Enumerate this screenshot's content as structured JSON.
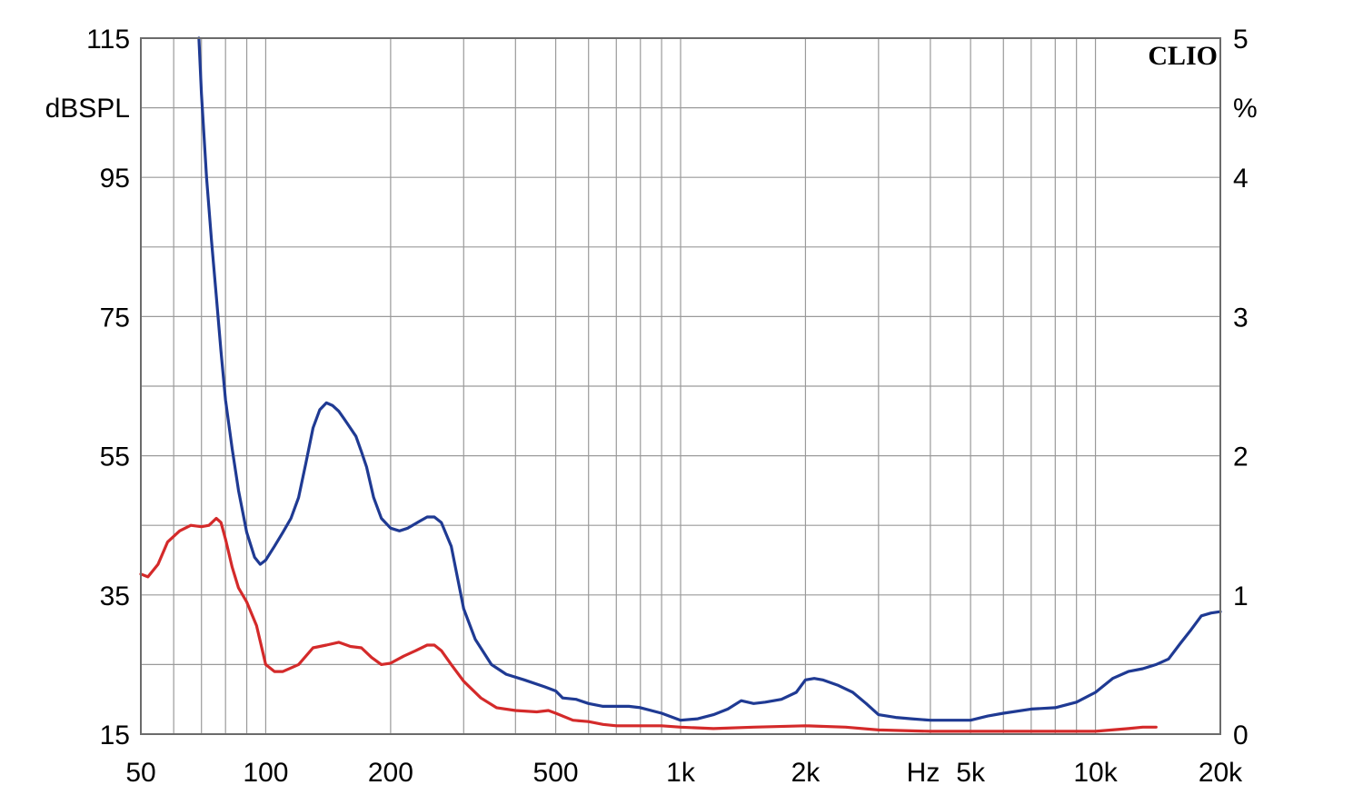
{
  "chart_data": {
    "type": "line",
    "brand_label": "CLIO",
    "x_unit_label": "Hz",
    "y_left_unit": "dBSPL",
    "y_right_unit": "%",
    "x_scale": "log",
    "xlim": [
      50,
      20000
    ],
    "x_ticks": [
      {
        "value": 50,
        "label": "50"
      },
      {
        "value": 100,
        "label": "100"
      },
      {
        "value": 200,
        "label": "200"
      },
      {
        "value": 500,
        "label": "500"
      },
      {
        "value": 1000,
        "label": "1k"
      },
      {
        "value": 2000,
        "label": "2k"
      },
      {
        "value": 5000,
        "label": "5k"
      },
      {
        "value": 10000,
        "label": "10k"
      },
      {
        "value": 20000,
        "label": "20k"
      }
    ],
    "y_left_lim": [
      15,
      115
    ],
    "y_left_ticks": [
      {
        "value": 15,
        "label": "15"
      },
      {
        "value": 35,
        "label": "35"
      },
      {
        "value": 55,
        "label": "55"
      },
      {
        "value": 75,
        "label": "75"
      },
      {
        "value": 95,
        "label": "95"
      },
      {
        "value": 115,
        "label": "115"
      }
    ],
    "y_right_lim": [
      0,
      5
    ],
    "y_right_ticks": [
      {
        "value": 0,
        "label": "0"
      },
      {
        "value": 1,
        "label": "1"
      },
      {
        "value": 2,
        "label": "2"
      },
      {
        "value": 3,
        "label": "3"
      },
      {
        "value": 4,
        "label": "4"
      },
      {
        "value": 5,
        "label": "5"
      }
    ],
    "grid": true,
    "series": [
      {
        "color": "#1f3a93",
        "axis": "right",
        "points": [
          [
            69,
            5.0
          ],
          [
            70,
            4.6
          ],
          [
            72,
            4.0
          ],
          [
            74,
            3.55
          ],
          [
            76,
            3.15
          ],
          [
            78,
            2.75
          ],
          [
            80,
            2.4
          ],
          [
            83,
            2.05
          ],
          [
            86,
            1.75
          ],
          [
            90,
            1.45
          ],
          [
            94,
            1.27
          ],
          [
            97,
            1.22
          ],
          [
            100,
            1.25
          ],
          [
            105,
            1.35
          ],
          [
            110,
            1.45
          ],
          [
            115,
            1.55
          ],
          [
            120,
            1.7
          ],
          [
            125,
            1.95
          ],
          [
            130,
            2.2
          ],
          [
            135,
            2.33
          ],
          [
            140,
            2.38
          ],
          [
            145,
            2.36
          ],
          [
            150,
            2.32
          ],
          [
            155,
            2.26
          ],
          [
            165,
            2.14
          ],
          [
            170,
            2.03
          ],
          [
            175,
            1.92
          ],
          [
            182,
            1.7
          ],
          [
            190,
            1.55
          ],
          [
            200,
            1.48
          ],
          [
            210,
            1.46
          ],
          [
            220,
            1.48
          ],
          [
            235,
            1.53
          ],
          [
            245,
            1.56
          ],
          [
            255,
            1.56
          ],
          [
            265,
            1.52
          ],
          [
            280,
            1.35
          ],
          [
            300,
            0.9
          ],
          [
            320,
            0.68
          ],
          [
            350,
            0.5
          ],
          [
            380,
            0.43
          ],
          [
            420,
            0.39
          ],
          [
            470,
            0.34
          ],
          [
            500,
            0.31
          ],
          [
            520,
            0.26
          ],
          [
            560,
            0.25
          ],
          [
            600,
            0.22
          ],
          [
            650,
            0.2
          ],
          [
            700,
            0.2
          ],
          [
            750,
            0.2
          ],
          [
            800,
            0.19
          ],
          [
            900,
            0.15
          ],
          [
            1000,
            0.1
          ],
          [
            1100,
            0.11
          ],
          [
            1200,
            0.14
          ],
          [
            1300,
            0.18
          ],
          [
            1400,
            0.24
          ],
          [
            1500,
            0.22
          ],
          [
            1600,
            0.23
          ],
          [
            1750,
            0.25
          ],
          [
            1900,
            0.3
          ],
          [
            2000,
            0.39
          ],
          [
            2100,
            0.4
          ],
          [
            2200,
            0.39
          ],
          [
            2400,
            0.35
          ],
          [
            2600,
            0.3
          ],
          [
            2800,
            0.22
          ],
          [
            3000,
            0.14
          ],
          [
            3300,
            0.12
          ],
          [
            3600,
            0.11
          ],
          [
            4000,
            0.1
          ],
          [
            4500,
            0.1
          ],
          [
            5000,
            0.1
          ],
          [
            5500,
            0.13
          ],
          [
            6000,
            0.15
          ],
          [
            7000,
            0.18
          ],
          [
            8000,
            0.19
          ],
          [
            9000,
            0.23
          ],
          [
            10000,
            0.3
          ],
          [
            11000,
            0.4
          ],
          [
            12000,
            0.45
          ],
          [
            13000,
            0.47
          ],
          [
            14000,
            0.5
          ],
          [
            15000,
            0.54
          ],
          [
            16000,
            0.65
          ],
          [
            17000,
            0.75
          ],
          [
            18000,
            0.85
          ],
          [
            19000,
            0.87
          ],
          [
            20000,
            0.88
          ]
        ]
      },
      {
        "color": "#d42a2a",
        "axis": "right",
        "points": [
          [
            50,
            1.15
          ],
          [
            52,
            1.13
          ],
          [
            55,
            1.22
          ],
          [
            58,
            1.38
          ],
          [
            62,
            1.46
          ],
          [
            66,
            1.5
          ],
          [
            70,
            1.49
          ],
          [
            73,
            1.5
          ],
          [
            76,
            1.55
          ],
          [
            78,
            1.52
          ],
          [
            80,
            1.4
          ],
          [
            83,
            1.2
          ],
          [
            86,
            1.05
          ],
          [
            90,
            0.95
          ],
          [
            95,
            0.78
          ],
          [
            100,
            0.5
          ],
          [
            105,
            0.45
          ],
          [
            110,
            0.45
          ],
          [
            120,
            0.5
          ],
          [
            130,
            0.62
          ],
          [
            140,
            0.64
          ],
          [
            150,
            0.66
          ],
          [
            160,
            0.63
          ],
          [
            170,
            0.62
          ],
          [
            180,
            0.55
          ],
          [
            190,
            0.5
          ],
          [
            200,
            0.51
          ],
          [
            215,
            0.56
          ],
          [
            230,
            0.6
          ],
          [
            245,
            0.64
          ],
          [
            255,
            0.64
          ],
          [
            265,
            0.6
          ],
          [
            280,
            0.5
          ],
          [
            300,
            0.38
          ],
          [
            330,
            0.26
          ],
          [
            360,
            0.19
          ],
          [
            400,
            0.17
          ],
          [
            450,
            0.16
          ],
          [
            480,
            0.17
          ],
          [
            500,
            0.15
          ],
          [
            550,
            0.1
          ],
          [
            600,
            0.09
          ],
          [
            650,
            0.07
          ],
          [
            700,
            0.06
          ],
          [
            800,
            0.06
          ],
          [
            900,
            0.06
          ],
          [
            1000,
            0.05
          ],
          [
            1200,
            0.04
          ],
          [
            1500,
            0.05
          ],
          [
            2000,
            0.06
          ],
          [
            2500,
            0.05
          ],
          [
            3000,
            0.03
          ],
          [
            4000,
            0.02
          ],
          [
            5000,
            0.02
          ],
          [
            6000,
            0.02
          ],
          [
            8000,
            0.02
          ],
          [
            10000,
            0.02
          ],
          [
            12000,
            0.04
          ],
          [
            13000,
            0.05
          ],
          [
            14000,
            0.05
          ]
        ]
      }
    ]
  }
}
